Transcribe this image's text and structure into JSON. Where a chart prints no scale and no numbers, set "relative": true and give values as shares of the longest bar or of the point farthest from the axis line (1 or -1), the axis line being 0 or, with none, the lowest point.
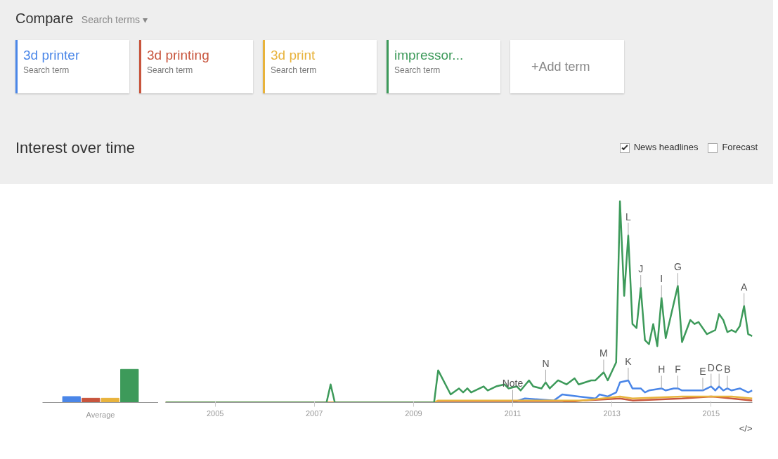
{
  "chart_data": [
    {
      "type": "other",
      "title": "Compare",
      "annotations": [
        "Search terms ▾",
        "Search term",
        "Search term",
        "Search term",
        "Search term",
        "+Add term"
      ]
    },
    {
      "type": "bar",
      "relative": true,
      "xlabel": "Average",
      "categories": [
        null,
        null,
        null,
        null
      ],
      "values": [
        0.18,
        0.13,
        0.13,
        1.0
      ],
      "colors": [
        "#4a86e8",
        "#c8553d",
        "#e8b33c",
        "#3d9a5a"
      ]
    },
    {
      "type": "line",
      "relative": true,
      "title": "Interest over time",
      "legend": "top",
      "xlim": [
        "2004-01",
        "2015-11"
      ],
      "xticks": [
        "2005",
        "2007",
        "2009",
        "2011",
        "2013",
        "2015"
      ],
      "grid": false,
      "series": [
        {
          "name": "3d printer",
          "color": "#4a86e8",
          "x": [
            "2011-01",
            "2011-04",
            "2011-11",
            "2012-01",
            "2012-05",
            "2012-09",
            "2012-10",
            "2012-12",
            "2013-02",
            "2013-03",
            "2013-05",
            "2013-06",
            "2013-08",
            "2013-09",
            "2013-10",
            "2014-01",
            "2014-02",
            "2014-04",
            "2014-05",
            "2014-06",
            "2014-11",
            "2015-01",
            "2015-02",
            "2015-03",
            "2015-04",
            "2015-05",
            "2015-06",
            "2015-08",
            "2015-10",
            "2015-11"
          ],
          "values": [
            0,
            0.02,
            0.01,
            0.04,
            0.03,
            0.02,
            0.04,
            0.03,
            0.05,
            0.1,
            0.11,
            0.07,
            0.07,
            0.05,
            0.06,
            0.07,
            0.06,
            0.07,
            0.07,
            0.06,
            0.06,
            0.08,
            0.06,
            0.08,
            0.06,
            0.07,
            0.06,
            0.07,
            0.05,
            0.06
          ]
        },
        {
          "name": "3d printing",
          "color": "#c8553d",
          "x": [
            "2004-01",
            "2012-01",
            "2012-06",
            "2013-03",
            "2013-06",
            "2014-06",
            "2015-01",
            "2015-06",
            "2015-11"
          ],
          "values": [
            0,
            0,
            0.01,
            0.02,
            0.01,
            0.02,
            0.03,
            0.02,
            0.01
          ]
        },
        {
          "name": "3d print",
          "color": "#e8b33c",
          "x": [
            "2004-01",
            "2009-06",
            "2009-07",
            "2012-06",
            "2013-03",
            "2013-06",
            "2014-06",
            "2015-01",
            "2015-06",
            "2015-11"
          ],
          "values": [
            0,
            0,
            0.01,
            0.01,
            0.03,
            0.02,
            0.03,
            0.03,
            0.03,
            0.02
          ]
        },
        {
          "name": "impressor...",
          "color": "#3d9a5a",
          "x": [
            "2004-01",
            "2007-04",
            "2007-05",
            "2007-06",
            "2009-06",
            "2009-07",
            "2009-10",
            "2009-12",
            "2010-01",
            "2010-02",
            "2010-03",
            "2010-06",
            "2010-07",
            "2010-09",
            "2010-11",
            "2010-12",
            "2011-02",
            "2011-03",
            "2011-05",
            "2011-06",
            "2011-08",
            "2011-09",
            "2011-10",
            "2011-12",
            "2012-02",
            "2012-04",
            "2012-05",
            "2012-08",
            "2012-09",
            "2012-11",
            "2012-12",
            "2013-02",
            "2013-03",
            "2013-04",
            "2013-05",
            "2013-06",
            "2013-07",
            "2013-08",
            "2013-09",
            "2013-10",
            "2013-11",
            "2013-12",
            "2014-01",
            "2014-02",
            "2014-05",
            "2014-06",
            "2014-08",
            "2014-09",
            "2014-10",
            "2014-12",
            "2015-02",
            "2015-03",
            "2015-04",
            "2015-05",
            "2015-06",
            "2015-07",
            "2015-08",
            "2015-09",
            "2015-10",
            "2015-11"
          ],
          "values": [
            0,
            0,
            0.09,
            0,
            0,
            0.16,
            0.04,
            0.07,
            0.05,
            0.07,
            0.05,
            0.08,
            0.06,
            0.08,
            0.09,
            0.07,
            0.08,
            0.06,
            0.11,
            0.08,
            0.07,
            0.1,
            0.07,
            0.11,
            0.09,
            0.12,
            0.09,
            0.11,
            0.11,
            0.15,
            0.11,
            0.2,
            1.0,
            0.53,
            0.83,
            0.39,
            0.37,
            0.57,
            0.31,
            0.29,
            0.39,
            0.28,
            0.52,
            0.32,
            0.58,
            0.3,
            0.41,
            0.39,
            0.4,
            0.34,
            0.36,
            0.44,
            0.41,
            0.35,
            0.36,
            0.35,
            0.38,
            0.48,
            0.34,
            0.33
          ]
        }
      ],
      "annotations": [
        {
          "text": "A",
          "x": "2015-09",
          "y": 0.48
        },
        {
          "text": "B",
          "x": "2015-05",
          "y": 0.07
        },
        {
          "text": "C",
          "x": "2015-03",
          "y": 0.08
        },
        {
          "text": "D",
          "x": "2015-01",
          "y": 0.08
        },
        {
          "text": "E",
          "x": "2014-11",
          "y": 0.06
        },
        {
          "text": "F",
          "x": "2014-05",
          "y": 0.07
        },
        {
          "text": "G",
          "x": "2014-05",
          "y": 0.58
        },
        {
          "text": "H",
          "x": "2014-01",
          "y": 0.07
        },
        {
          "text": "I",
          "x": "2014-01",
          "y": 0.52
        },
        {
          "text": "J",
          "x": "2013-08",
          "y": 0.57
        },
        {
          "text": "K",
          "x": "2013-05",
          "y": 0.11
        },
        {
          "text": "L",
          "x": "2013-05",
          "y": 0.83
        },
        {
          "text": "M",
          "x": "2012-11",
          "y": 0.15
        },
        {
          "text": "N",
          "x": "2011-09",
          "y": 0.1
        },
        {
          "text": "Note",
          "x": "2011-01",
          "y": 0
        },
        "News headlines",
        "Forecast",
        "</>"
      ]
    }
  ]
}
